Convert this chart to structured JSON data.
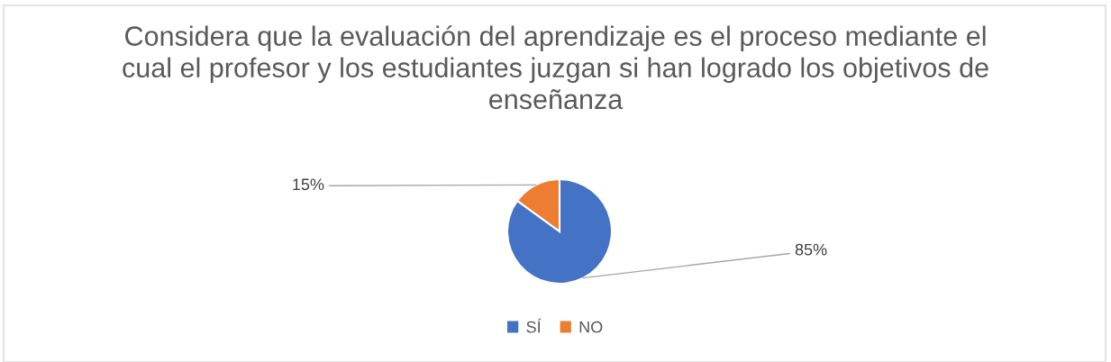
{
  "chart_data": {
    "type": "pie",
    "title": "Considera que la evaluación del aprendizaje es el proceso mediante el cual el profesor y los estudiantes juzgan si han logrado los objetivos de enseñanza",
    "categories": [
      "SÍ",
      "NO"
    ],
    "values": [
      85,
      15
    ],
    "colors": [
      "#4472c4",
      "#ed7d31"
    ],
    "value_labels": [
      "85%",
      "15%"
    ],
    "legend": "bottom"
  }
}
